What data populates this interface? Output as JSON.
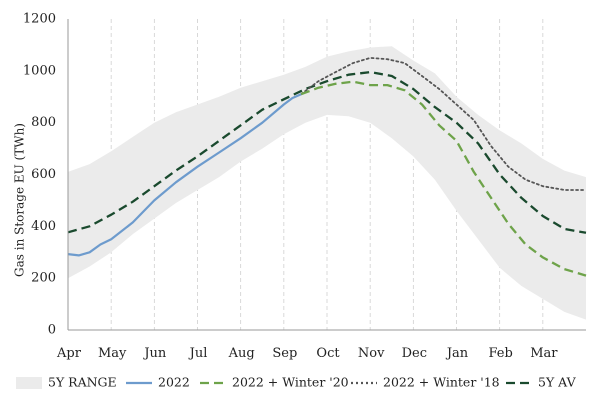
{
  "chart_data": {
    "type": "line",
    "ylabel": "Gas in Storage EU (TWh)",
    "ylim": [
      0,
      1200
    ],
    "yticks": [
      0,
      200,
      400,
      600,
      800,
      1000,
      1200
    ],
    "xlim": [
      0,
      12
    ],
    "x_tick_labels": [
      "Apr",
      "May",
      "Jun",
      "Jul",
      "Aug",
      "Sep",
      "Oct",
      "Nov",
      "Dec",
      "Jan",
      "Feb",
      "Mar"
    ],
    "grid": "vertical dashed",
    "legend_position": "bottom",
    "range": {
      "name": "5Y RANGE",
      "color": "#ebebeb",
      "x": [
        0,
        0.5,
        1,
        1.5,
        2,
        2.5,
        3,
        3.5,
        4,
        4.5,
        5,
        5.5,
        6,
        6.5,
        7,
        7.5,
        8,
        8.5,
        9,
        9.5,
        10,
        10.5,
        11,
        11.5,
        12
      ],
      "high": [
        610,
        640,
        690,
        745,
        800,
        840,
        870,
        900,
        935,
        960,
        985,
        1015,
        1055,
        1075,
        1090,
        1095,
        1040,
        990,
        900,
        830,
        770,
        720,
        660,
        615,
        590
      ],
      "low": [
        200,
        245,
        300,
        370,
        430,
        490,
        540,
        590,
        650,
        700,
        755,
        800,
        830,
        825,
        800,
        740,
        670,
        580,
        460,
        350,
        240,
        170,
        120,
        70,
        40
      ]
    },
    "series": [
      {
        "name": "2022",
        "color": "#6d9bcd",
        "style": "solid",
        "x": [
          0,
          0.25,
          0.5,
          0.75,
          1,
          1.5,
          2,
          2.5,
          3,
          3.5,
          4,
          4.5,
          5,
          5.2,
          5.4
        ],
        "values": [
          293,
          288,
          300,
          330,
          350,
          415,
          500,
          570,
          630,
          685,
          740,
          800,
          870,
          895,
          910
        ]
      },
      {
        "name": "2022 + Winter '20",
        "color": "#6ea34a",
        "style": "dashed",
        "x": [
          5.4,
          5.8,
          6.2,
          6.6,
          7,
          7.4,
          7.8,
          8.2,
          8.6,
          9,
          9.4,
          9.8,
          10.2,
          10.6,
          11,
          11.5,
          12
        ],
        "values": [
          910,
          935,
          950,
          958,
          945,
          945,
          925,
          870,
          790,
          730,
          610,
          510,
          410,
          330,
          280,
          235,
          210
        ]
      },
      {
        "name": "2022 + Winter '18",
        "color": "#555555",
        "style": "dotted",
        "x": [
          5.4,
          5.8,
          6.2,
          6.6,
          7,
          7.4,
          7.8,
          8.2,
          8.6,
          9,
          9.4,
          9.8,
          10.2,
          10.6,
          11,
          11.5,
          12
        ],
        "values": [
          910,
          960,
          995,
          1030,
          1050,
          1045,
          1030,
          980,
          930,
          870,
          810,
          710,
          630,
          580,
          555,
          540,
          540
        ]
      },
      {
        "name": "5Y AV",
        "color": "#1a4a2e",
        "style": "dashed",
        "x": [
          0,
          0.5,
          1,
          1.5,
          2,
          2.5,
          3,
          3.5,
          4,
          4.5,
          5,
          5.5,
          6,
          6.5,
          7,
          7.5,
          8,
          8.5,
          9,
          9.5,
          10,
          10.5,
          11,
          11.5,
          12
        ],
        "values": [
          377,
          400,
          445,
          495,
          555,
          615,
          670,
          730,
          790,
          850,
          890,
          930,
          960,
          985,
          995,
          980,
          930,
          860,
          800,
          720,
          600,
          510,
          440,
          390,
          375
        ]
      }
    ]
  }
}
